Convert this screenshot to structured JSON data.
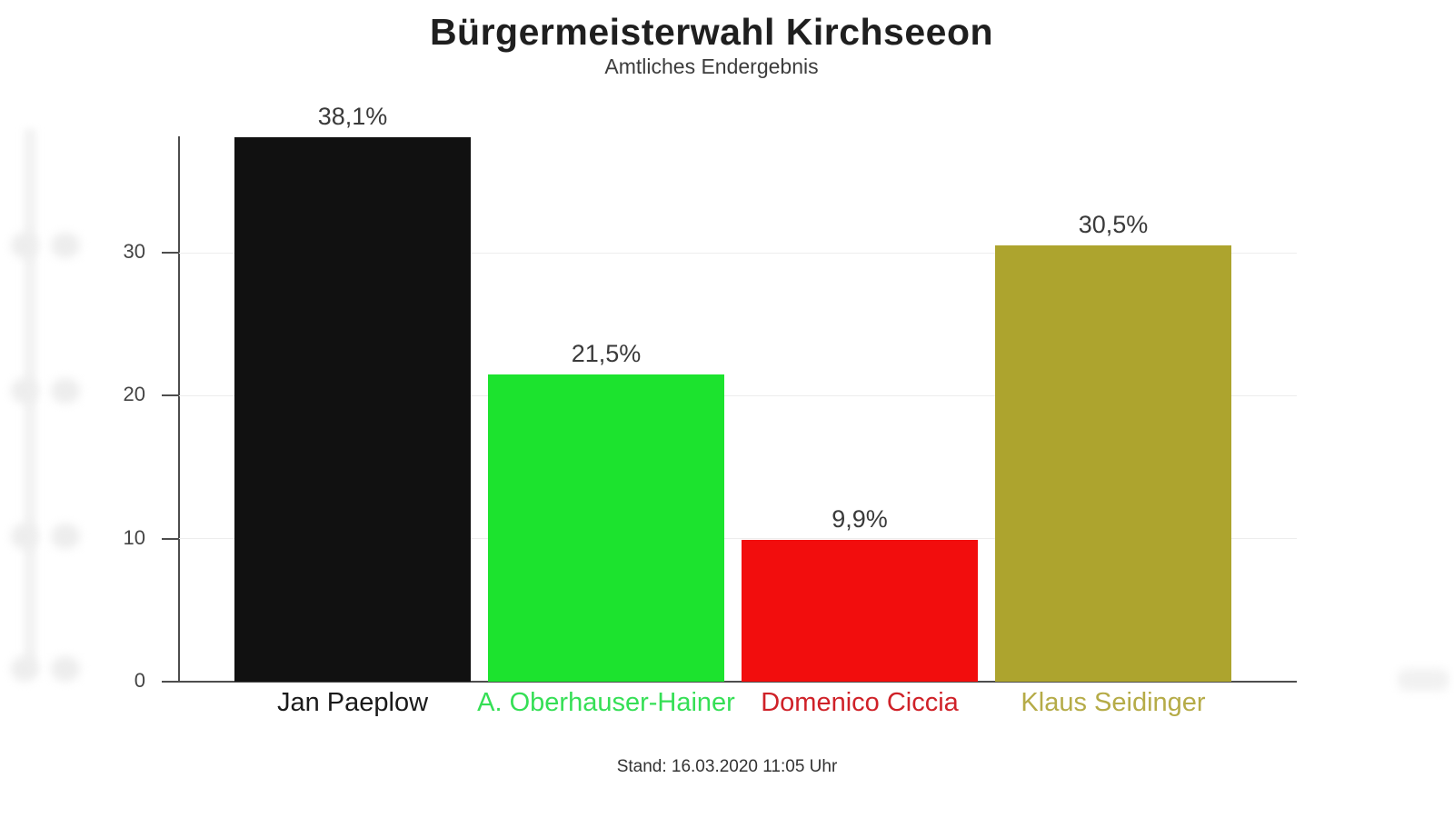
{
  "header": {
    "title": "Bürgermeisterwahl Kirchseeon",
    "subtitle": "Amtliches Endergebnis"
  },
  "footer": {
    "stand": "Stand: 16.03.2020 11:05 Uhr"
  },
  "chart_data": {
    "type": "bar",
    "title": "Bürgermeisterwahl Kirchseeon",
    "subtitle": "Amtliches Endergebnis",
    "categories": [
      "Jan Paeplow",
      "A. Oberhauser-Hainer",
      "Domenico Ciccia",
      "Klaus Seidinger"
    ],
    "values": [
      38.1,
      21.5,
      9.9,
      30.5
    ],
    "value_labels": [
      "38,1%",
      "21,5%",
      "9,9%",
      "30,5%"
    ],
    "bar_colors": [
      "#111111",
      "#1ce32e",
      "#f20d0d",
      "#ada42e"
    ],
    "category_label_colors": [
      "#1a1a1a",
      "#35df55",
      "#cf2128",
      "#b5ab47"
    ],
    "y_ticks": [
      0,
      10,
      20,
      30
    ],
    "ylim": [
      0,
      38.15
    ],
    "xlabel": "",
    "ylabel": "",
    "grid": "horizontal-faint",
    "legend": "none",
    "status_note": "Stand: 16.03.2020 11:05 Uhr"
  }
}
